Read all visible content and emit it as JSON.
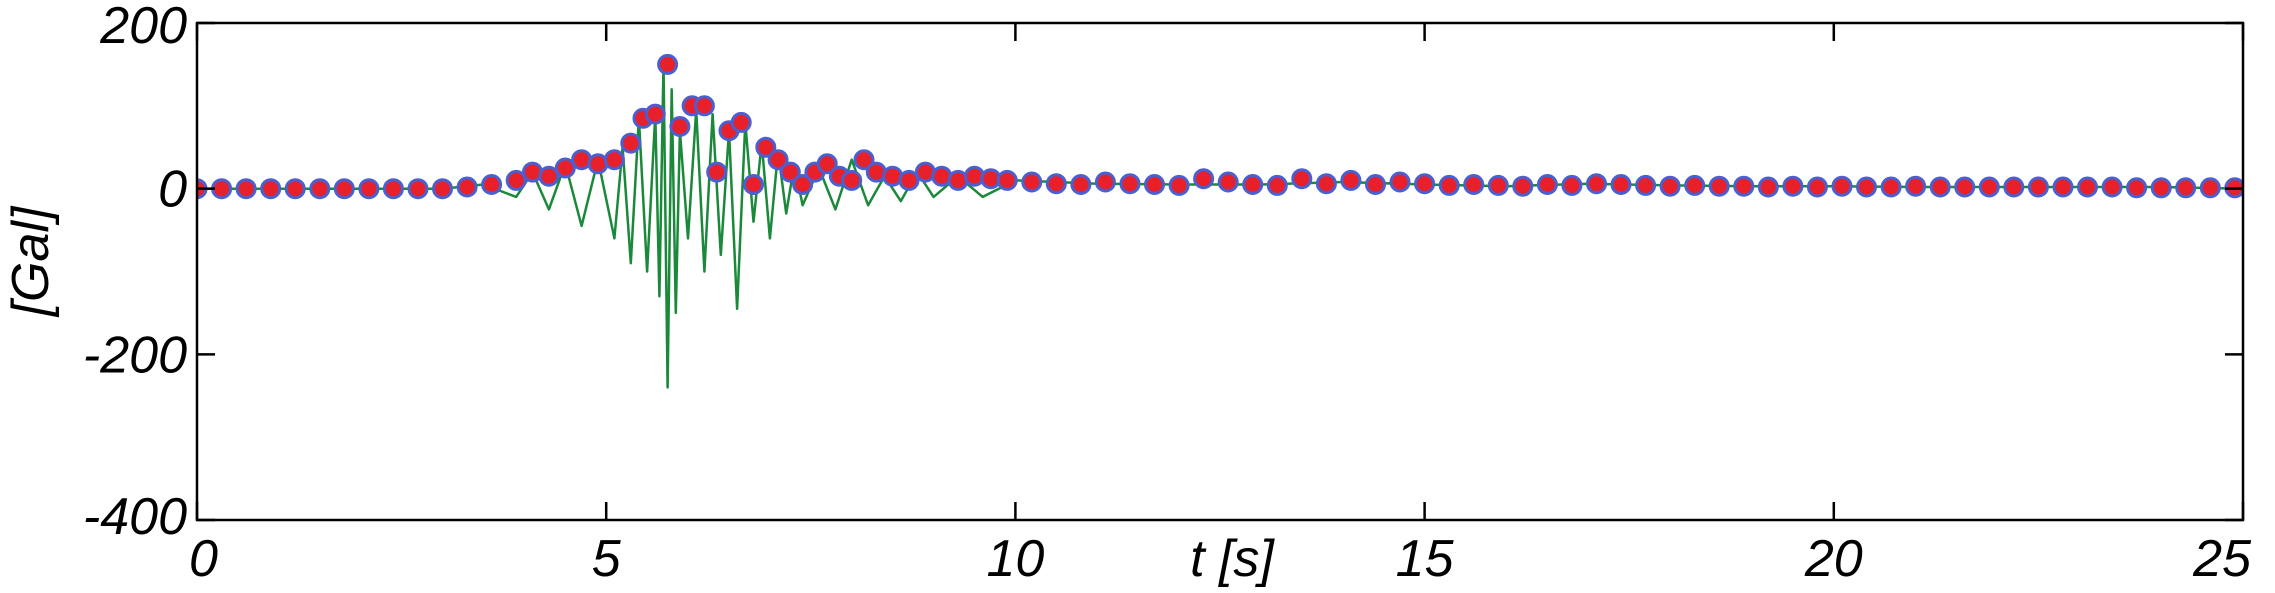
{
  "chart_data": {
    "type": "line",
    "title": "",
    "xlabel": "t [s]",
    "ylabel": "[Gal]",
    "xlim": [
      0,
      25
    ],
    "ylim": [
      -400,
      200
    ],
    "xticks": [
      0,
      5,
      10,
      15,
      20,
      25
    ],
    "yticks": [
      200,
      0,
      -200,
      -400
    ],
    "xtick_labels": [
      "0",
      "5",
      "10",
      "15",
      "20",
      "25"
    ],
    "ytick_labels": [
      "200",
      "0",
      "-200",
      "-400"
    ],
    "grid": false,
    "legend": "none",
    "series": [
      {
        "kind": "line",
        "color": "#1a8a3a",
        "x": [
          0,
          1,
          2,
          3,
          3.5,
          3.9,
          4.1,
          4.3,
          4.5,
          4.7,
          4.9,
          5.1,
          5.2,
          5.3,
          5.4,
          5.5,
          5.6,
          5.65,
          5.7,
          5.75,
          5.8,
          5.85,
          5.9,
          6.0,
          6.1,
          6.2,
          6.3,
          6.4,
          6.5,
          6.6,
          6.7,
          6.8,
          6.9,
          7.0,
          7.1,
          7.2,
          7.3,
          7.4,
          7.6,
          7.8,
          8.0,
          8.2,
          8.4,
          8.6,
          8.8,
          9.0,
          9.3,
          9.6,
          10.0,
          10.5,
          11.0,
          12.0,
          13.0,
          14.0,
          15.0,
          16.0,
          17.0,
          18.0,
          19.0,
          20.0,
          21.0,
          22.0,
          23.0,
          24.0,
          25.0
        ],
        "y": [
          0,
          0,
          0,
          0,
          5,
          -10,
          20,
          -25,
          30,
          -45,
          35,
          -60,
          50,
          -90,
          85,
          -100,
          90,
          -130,
          150,
          -240,
          120,
          -150,
          70,
          -60,
          95,
          -100,
          90,
          -80,
          70,
          -145,
          80,
          -40,
          55,
          -60,
          45,
          -30,
          30,
          -20,
          25,
          -25,
          35,
          -20,
          15,
          -15,
          20,
          -10,
          15,
          -10,
          10,
          8,
          6,
          5,
          5,
          8,
          5,
          3,
          6,
          4,
          3,
          3,
          2,
          2,
          2,
          2,
          0
        ]
      },
      {
        "kind": "markers",
        "marker_fill": "#e8202a",
        "marker_edge": "#4a5fd0",
        "x": [
          0,
          0.3,
          0.6,
          0.9,
          1.2,
          1.5,
          1.8,
          2.1,
          2.4,
          2.7,
          3.0,
          3.3,
          3.6,
          3.9,
          4.1,
          4.3,
          4.5,
          4.7,
          4.9,
          5.1,
          5.3,
          5.45,
          5.6,
          5.75,
          5.9,
          6.05,
          6.2,
          6.35,
          6.5,
          6.65,
          6.8,
          6.95,
          7.1,
          7.25,
          7.4,
          7.55,
          7.7,
          7.85,
          8.0,
          8.15,
          8.3,
          8.5,
          8.7,
          8.9,
          9.1,
          9.3,
          9.5,
          9.7,
          9.9,
          10.2,
          10.5,
          10.8,
          11.1,
          11.4,
          11.7,
          12.0,
          12.3,
          12.6,
          12.9,
          13.2,
          13.5,
          13.8,
          14.1,
          14.4,
          14.7,
          15.0,
          15.3,
          15.6,
          15.9,
          16.2,
          16.5,
          16.8,
          17.1,
          17.4,
          17.7,
          18.0,
          18.3,
          18.6,
          18.9,
          19.2,
          19.5,
          19.8,
          20.1,
          20.4,
          20.7,
          21.0,
          21.3,
          21.6,
          21.9,
          22.2,
          22.5,
          22.8,
          23.1,
          23.4,
          23.7,
          24.0,
          24.3,
          24.6,
          24.9
        ],
        "y": [
          0,
          0,
          0,
          0,
          0,
          0,
          0,
          0,
          0,
          0,
          0,
          2,
          5,
          10,
          20,
          15,
          25,
          35,
          30,
          35,
          55,
          85,
          90,
          150,
          75,
          100,
          100,
          20,
          70,
          80,
          5,
          50,
          35,
          20,
          5,
          20,
          30,
          15,
          10,
          35,
          20,
          15,
          10,
          20,
          15,
          10,
          15,
          12,
          10,
          8,
          6,
          5,
          8,
          6,
          5,
          4,
          12,
          8,
          5,
          4,
          12,
          6,
          10,
          5,
          8,
          6,
          4,
          5,
          4,
          3,
          5,
          4,
          6,
          5,
          4,
          3,
          4,
          3,
          3,
          2,
          3,
          2,
          3,
          2,
          2,
          3,
          2,
          2,
          2,
          2,
          2,
          2,
          2,
          2,
          1,
          1,
          1,
          1,
          1
        ]
      }
    ]
  }
}
